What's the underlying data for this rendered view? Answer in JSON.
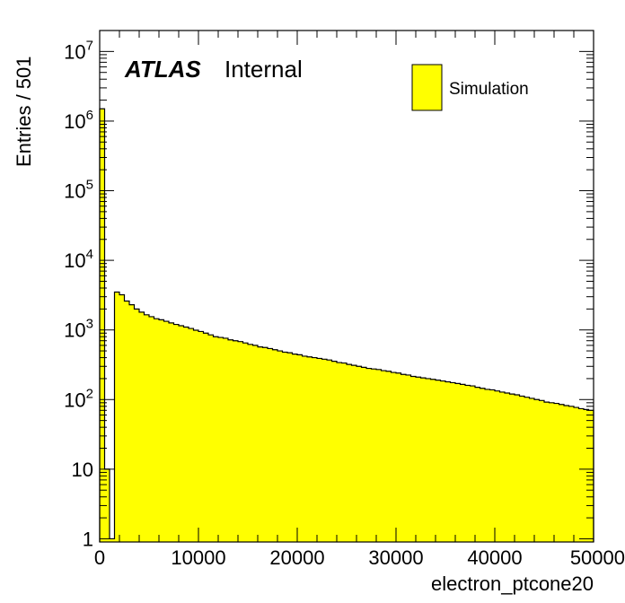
{
  "chart_data": {
    "type": "bar",
    "title": "",
    "xlabel": "electron_ptcone20",
    "ylabel": "Entries / 501",
    "xlim": [
      0,
      50000
    ],
    "ylim": [
      0.9,
      20000000
    ],
    "y_scale": "log",
    "bin_width": 501,
    "x_ticks": [
      0,
      10000,
      20000,
      30000,
      40000,
      50000
    ],
    "x_tick_labels": [
      "0",
      "10000",
      "20000",
      "30000",
      "40000",
      "50000"
    ],
    "y_ticks": [
      1,
      10,
      100,
      1000,
      10000,
      100000,
      1000000,
      10000000
    ],
    "y_tick_labels": [
      {
        "base": "1",
        "exp": ""
      },
      {
        "base": "10",
        "exp": ""
      },
      {
        "base": "10",
        "exp": "2"
      },
      {
        "base": "10",
        "exp": "3"
      },
      {
        "base": "10",
        "exp": "4"
      },
      {
        "base": "10",
        "exp": "5"
      },
      {
        "base": "10",
        "exp": "6"
      },
      {
        "base": "10",
        "exp": "7"
      }
    ],
    "series": [
      {
        "name": "Simulation",
        "color": "#ffff00",
        "values": [
          1500000,
          10,
          1,
          3500,
          3200,
          2600,
          2300,
          2000,
          1800,
          1650,
          1550,
          1450,
          1400,
          1330,
          1260,
          1200,
          1150,
          1100,
          1050,
          990,
          950,
          900,
          850,
          800,
          780,
          760,
          720,
          700,
          680,
          650,
          620,
          600,
          570,
          560,
          540,
          520,
          500,
          480,
          470,
          450,
          440,
          420,
          410,
          400,
          390,
          380,
          370,
          355,
          340,
          335,
          320,
          310,
          300,
          290,
          280,
          275,
          270,
          260,
          255,
          245,
          240,
          230,
          225,
          215,
          210,
          205,
          200,
          195,
          190,
          185,
          180,
          175,
          170,
          165,
          160,
          157,
          150,
          145,
          140,
          138,
          133,
          128,
          124,
          120,
          117,
          112,
          108,
          104,
          100,
          97,
          92,
          90,
          88,
          85,
          82,
          80,
          77,
          74,
          72,
          70
        ]
      }
    ],
    "labels": {
      "atlas": "ATLAS",
      "internal": "Internal"
    },
    "legend": {
      "position": "top-right",
      "entries": [
        "Simulation"
      ]
    },
    "styles": {
      "fill": "#ffff00",
      "line": "#000000"
    }
  }
}
